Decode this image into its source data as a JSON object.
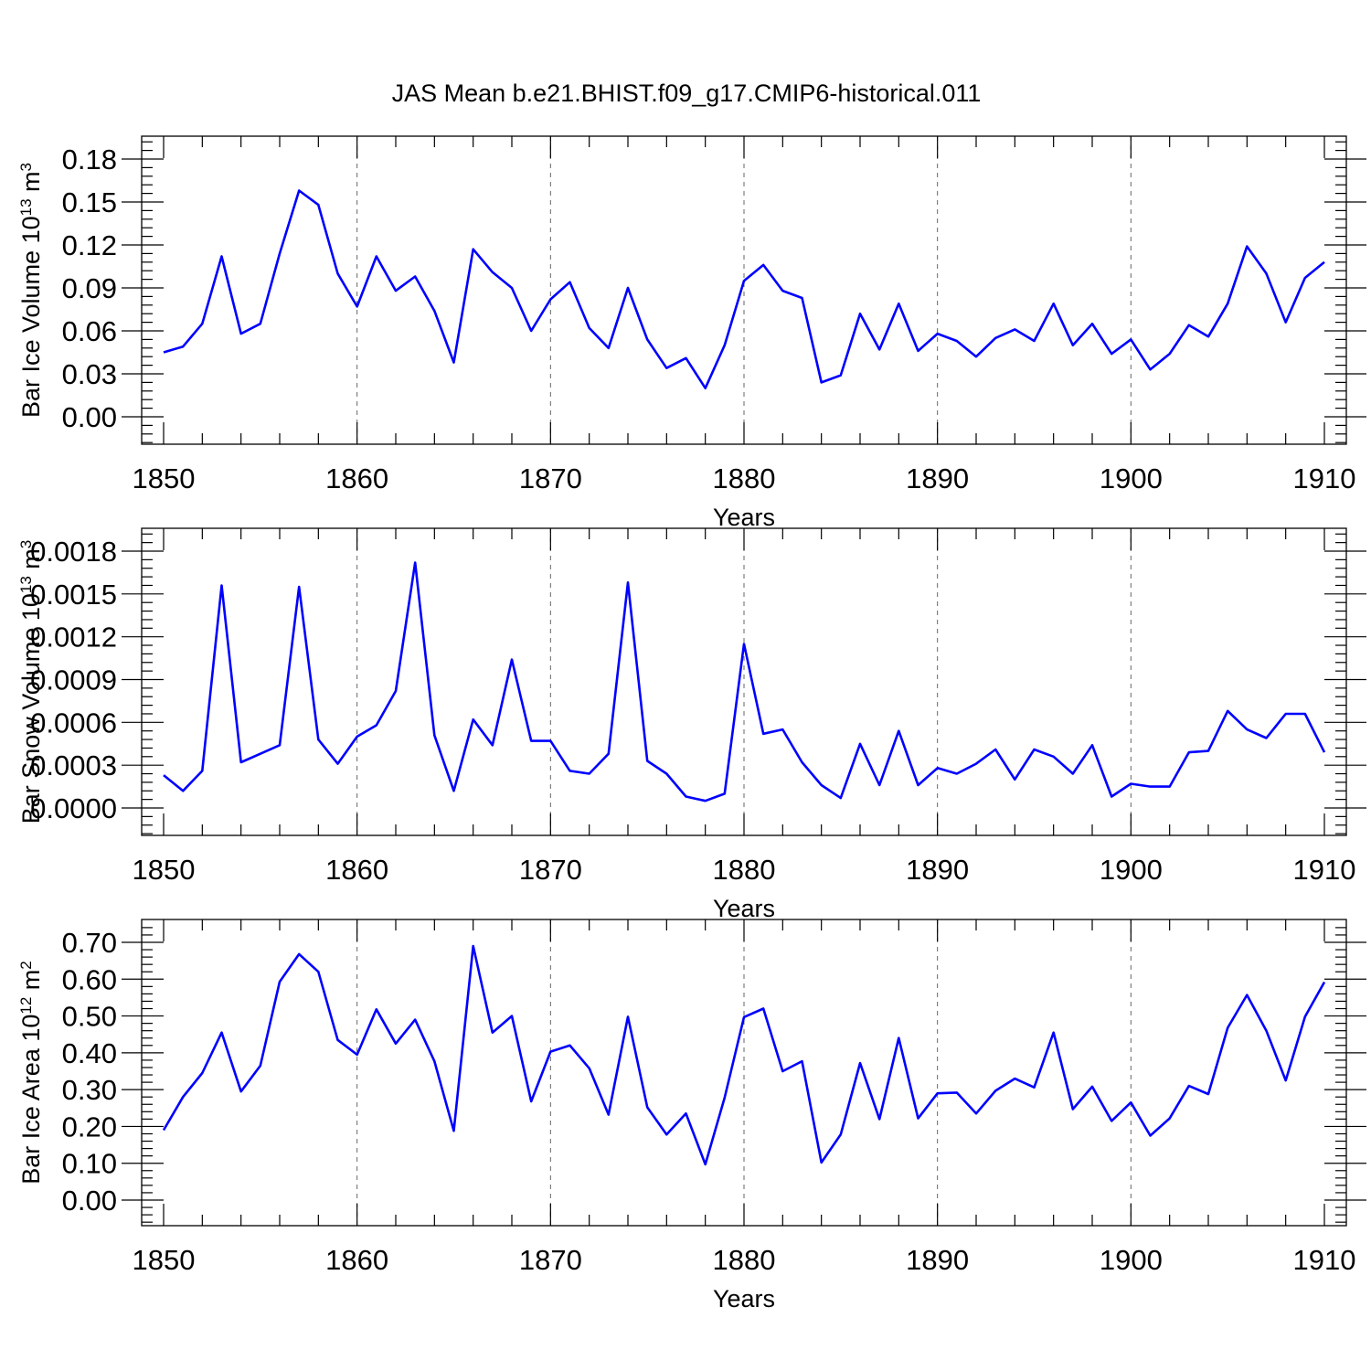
{
  "figure": {
    "title": "JAS Mean b.e21.BHIST.f09_g17.CMIP6-historical.011"
  },
  "chart_data": [
    {
      "type": "line",
      "ylabel": {
        "text": "Bar Ice Volume 10",
        "exp": "13",
        "unit": " m",
        "unit_exp": "3"
      },
      "xlabel": "Years",
      "xlim": [
        1850,
        1910
      ],
      "ylim": [
        0.0,
        0.18
      ],
      "x_ticks": [
        1850,
        1860,
        1870,
        1880,
        1890,
        1900,
        1910
      ],
      "x_tick_labels": [
        "1850",
        "1860",
        "1870",
        "1880",
        "1890",
        "1900",
        "1910"
      ],
      "y_ticks": [
        0.0,
        0.03,
        0.06,
        0.09,
        0.12,
        0.15,
        0.18
      ],
      "y_tick_labels": [
        "0.00",
        "0.03",
        "0.06",
        "0.09",
        "0.12",
        "0.15",
        "0.18"
      ],
      "grid": "vertical dashed at major x ticks",
      "color": "#0000ff",
      "x": [
        1850,
        1851,
        1852,
        1853,
        1854,
        1855,
        1856,
        1857,
        1858,
        1859,
        1860,
        1861,
        1862,
        1863,
        1864,
        1865,
        1866,
        1867,
        1868,
        1869,
        1870,
        1871,
        1872,
        1873,
        1874,
        1875,
        1876,
        1877,
        1878,
        1879,
        1880,
        1881,
        1882,
        1883,
        1884,
        1885,
        1886,
        1887,
        1888,
        1889,
        1890,
        1891,
        1892,
        1893,
        1894,
        1895,
        1896,
        1897,
        1898,
        1899,
        1900,
        1901,
        1902,
        1903,
        1904,
        1905,
        1906,
        1907,
        1908,
        1909,
        1910
      ],
      "values": [
        0.045,
        0.049,
        0.065,
        0.112,
        0.058,
        0.065,
        0.114,
        0.158,
        0.148,
        0.1,
        0.077,
        0.112,
        0.088,
        0.098,
        0.074,
        0.038,
        0.117,
        0.101,
        0.09,
        0.06,
        0.082,
        0.094,
        0.062,
        0.048,
        0.09,
        0.054,
        0.034,
        0.041,
        0.02,
        0.05,
        0.095,
        0.106,
        0.088,
        0.083,
        0.024,
        0.029,
        0.072,
        0.047,
        0.079,
        0.046,
        0.058,
        0.053,
        0.042,
        0.055,
        0.061,
        0.053,
        0.079,
        0.05,
        0.065,
        0.044,
        0.054,
        0.033,
        0.044,
        0.064,
        0.056,
        0.079,
        0.119,
        0.1,
        0.066,
        0.097,
        0.108
      ]
    },
    {
      "type": "line",
      "ylabel": {
        "text": "Bar Snow Volume 10",
        "exp": "13",
        "unit": " m",
        "unit_exp": "3"
      },
      "xlabel": "Years",
      "xlim": [
        1850,
        1910
      ],
      "ylim": [
        0.0,
        0.0018
      ],
      "x_ticks": [
        1850,
        1860,
        1870,
        1880,
        1890,
        1900,
        1910
      ],
      "x_tick_labels": [
        "1850",
        "1860",
        "1870",
        "1880",
        "1890",
        "1900",
        "1910"
      ],
      "y_ticks": [
        0.0,
        0.0003,
        0.0006,
        0.0009,
        0.0012,
        0.0015,
        0.0018
      ],
      "y_tick_labels": [
        "0.0000",
        "0.0003",
        "0.0006",
        "0.0009",
        "0.0012",
        "0.0015",
        "0.0018"
      ],
      "grid": "vertical dashed at major x ticks",
      "color": "#0000ff",
      "x": [
        1850,
        1851,
        1852,
        1853,
        1854,
        1855,
        1856,
        1857,
        1858,
        1859,
        1860,
        1861,
        1862,
        1863,
        1864,
        1865,
        1866,
        1867,
        1868,
        1869,
        1870,
        1871,
        1872,
        1873,
        1874,
        1875,
        1876,
        1877,
        1878,
        1879,
        1880,
        1881,
        1882,
        1883,
        1884,
        1885,
        1886,
        1887,
        1888,
        1889,
        1890,
        1891,
        1892,
        1893,
        1894,
        1895,
        1896,
        1897,
        1898,
        1899,
        1900,
        1901,
        1902,
        1903,
        1904,
        1905,
        1906,
        1907,
        1908,
        1909,
        1910
      ],
      "values": [
        0.00023,
        0.00012,
        0.00026,
        0.00156,
        0.00032,
        0.00038,
        0.00044,
        0.00155,
        0.00048,
        0.00031,
        0.0005,
        0.00058,
        0.00082,
        0.00172,
        0.00051,
        0.00012,
        0.00062,
        0.00044,
        0.00104,
        0.00047,
        0.00047,
        0.00026,
        0.00024,
        0.00038,
        0.00158,
        0.00033,
        0.00024,
        8e-05,
        5e-05,
        0.0001,
        0.00115,
        0.00052,
        0.00055,
        0.00032,
        0.00016,
        7e-05,
        0.00045,
        0.00016,
        0.00054,
        0.00016,
        0.00028,
        0.00024,
        0.00031,
        0.00041,
        0.0002,
        0.00041,
        0.00036,
        0.00024,
        0.00044,
        8e-05,
        0.00017,
        0.00015,
        0.00015,
        0.00039,
        0.0004,
        0.00068,
        0.00055,
        0.00049,
        0.00066,
        0.00066,
        0.00039
      ]
    },
    {
      "type": "line",
      "ylabel": {
        "text": "Bar Ice Area 10",
        "exp": "12",
        "unit": " m",
        "unit_exp": "2"
      },
      "xlabel": "Years",
      "xlim": [
        1850,
        1910
      ],
      "ylim": [
        0.0,
        0.7
      ],
      "x_ticks": [
        1850,
        1860,
        1870,
        1880,
        1890,
        1900,
        1910
      ],
      "x_tick_labels": [
        "1850",
        "1860",
        "1870",
        "1880",
        "1890",
        "1900",
        "1910"
      ],
      "y_ticks": [
        0.0,
        0.1,
        0.2,
        0.3,
        0.4,
        0.5,
        0.6,
        0.7
      ],
      "y_tick_labels": [
        "0.00",
        "0.10",
        "0.20",
        "0.30",
        "0.40",
        "0.50",
        "0.60",
        "0.70"
      ],
      "grid": "vertical dashed at major x ticks",
      "color": "#0000ff",
      "x": [
        1850,
        1851,
        1852,
        1853,
        1854,
        1855,
        1856,
        1857,
        1858,
        1859,
        1860,
        1861,
        1862,
        1863,
        1864,
        1865,
        1866,
        1867,
        1868,
        1869,
        1870,
        1871,
        1872,
        1873,
        1874,
        1875,
        1876,
        1877,
        1878,
        1879,
        1880,
        1881,
        1882,
        1883,
        1884,
        1885,
        1886,
        1887,
        1888,
        1889,
        1890,
        1891,
        1892,
        1893,
        1894,
        1895,
        1896,
        1897,
        1898,
        1899,
        1900,
        1901,
        1902,
        1903,
        1904,
        1905,
        1906,
        1907,
        1908,
        1909,
        1910
      ],
      "values": [
        0.19,
        0.28,
        0.345,
        0.455,
        0.295,
        0.365,
        0.593,
        0.668,
        0.62,
        0.435,
        0.395,
        0.518,
        0.425,
        0.49,
        0.377,
        0.188,
        0.69,
        0.455,
        0.5,
        0.268,
        0.403,
        0.42,
        0.358,
        0.232,
        0.498,
        0.252,
        0.178,
        0.235,
        0.097,
        0.278,
        0.497,
        0.52,
        0.35,
        0.377,
        0.102,
        0.178,
        0.372,
        0.22,
        0.44,
        0.222,
        0.29,
        0.292,
        0.235,
        0.297,
        0.33,
        0.306,
        0.455,
        0.247,
        0.308,
        0.215,
        0.265,
        0.175,
        0.222,
        0.31,
        0.288,
        0.468,
        0.557,
        0.46,
        0.325,
        0.498,
        0.592
      ]
    }
  ]
}
